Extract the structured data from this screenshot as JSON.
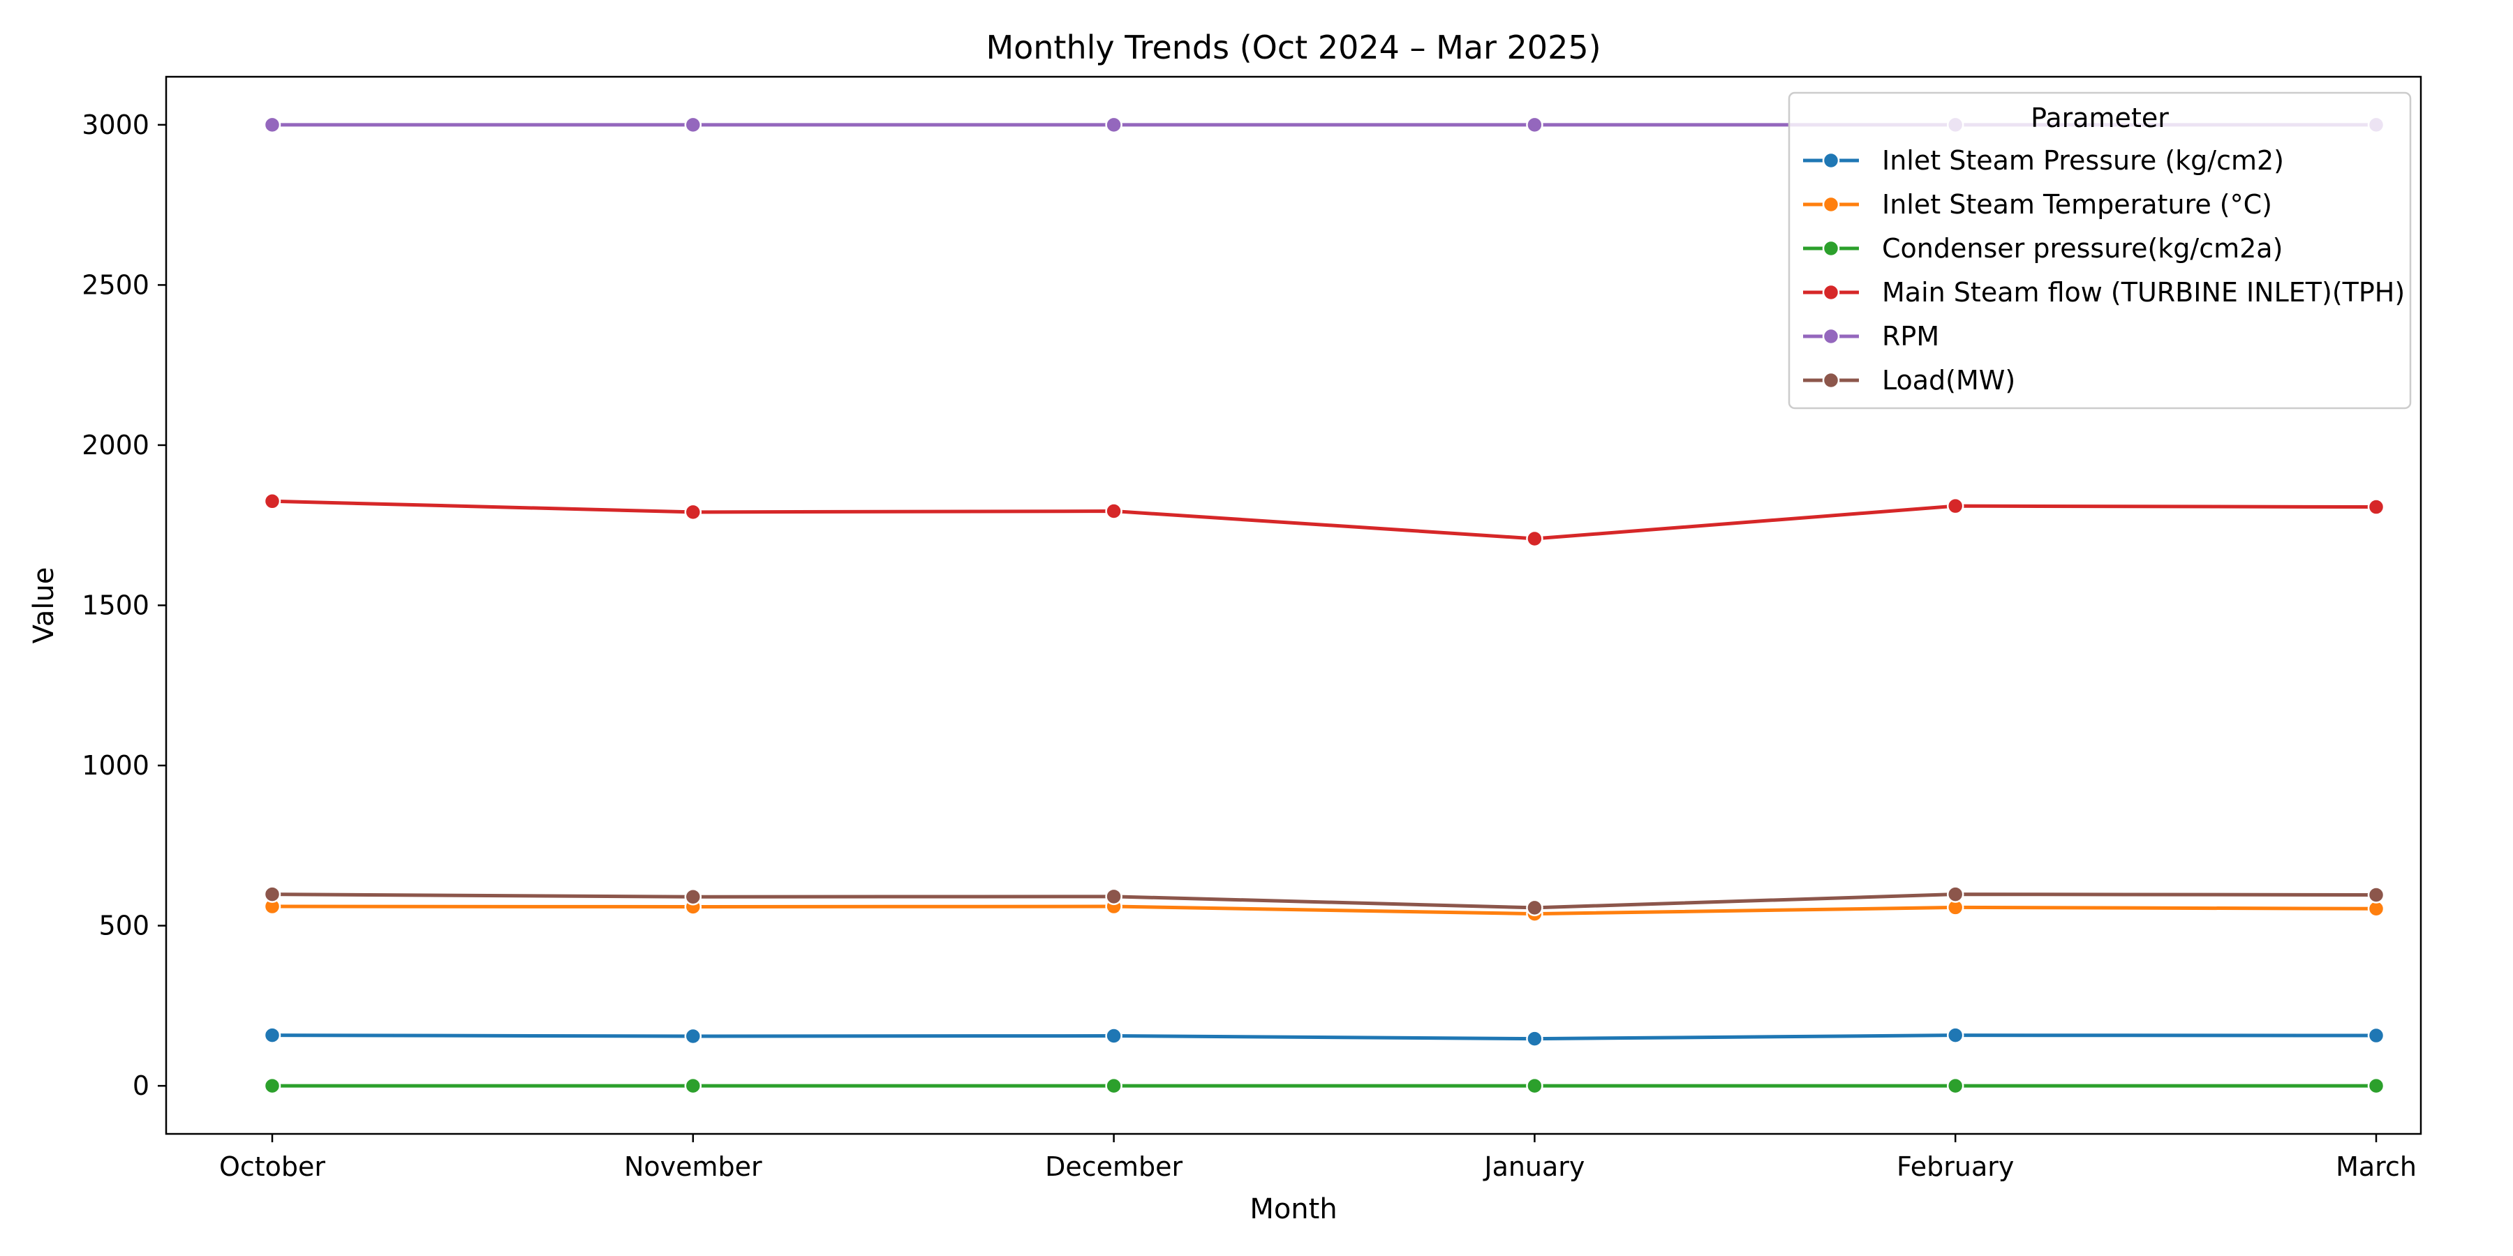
{
  "chart_data": {
    "type": "line",
    "title": "Monthly Trends (Oct 2024 – Mar 2025)",
    "xlabel": "Month",
    "ylabel": "Value",
    "categories": [
      "October",
      "November",
      "December",
      "January",
      "February",
      "March"
    ],
    "ylim": [
      -150,
      3150
    ],
    "yticks": [
      0,
      500,
      1000,
      1500,
      2000,
      2500,
      3000
    ],
    "grid": false,
    "legend": {
      "title": "Parameter",
      "placement": "top-right"
    },
    "series": [
      {
        "name": "Inlet Steam Pressure (kg/cm2)",
        "color": "#1f77b4",
        "values": [
          158,
          155,
          156,
          147,
          158,
          157
        ]
      },
      {
        "name": "Inlet Steam Temperature (°C)",
        "color": "#ff7f0e",
        "values": [
          560,
          559,
          560,
          537,
          557,
          553
        ]
      },
      {
        "name": "Condenser pressure(kg/cm2a)",
        "color": "#2ca02c",
        "values": [
          0.1,
          0.1,
          0.1,
          0.1,
          0.1,
          0.1
        ]
      },
      {
        "name": "Main Steam flow (TURBINE INLET)(TPH)",
        "color": "#d62728",
        "values": [
          1825,
          1791,
          1794,
          1708,
          1810,
          1807
        ]
      },
      {
        "name": "RPM",
        "color": "#9467bd",
        "values": [
          3000,
          3000,
          3000,
          3000,
          3000,
          3000
        ]
      },
      {
        "name": "Load(MW)",
        "color": "#8c564b",
        "values": [
          598,
          590,
          591,
          556,
          598,
          596
        ]
      }
    ]
  }
}
